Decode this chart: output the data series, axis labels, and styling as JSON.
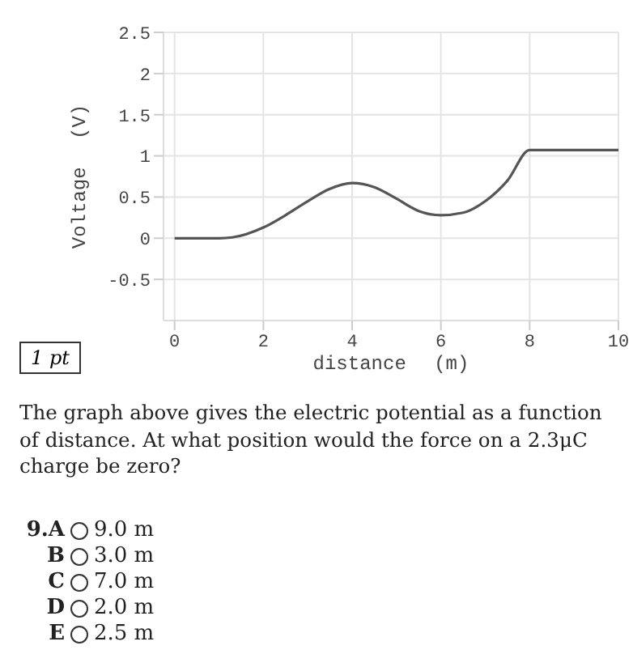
{
  "chart_data": {
    "type": "line",
    "xlabel": "distance (m)",
    "ylabel": "Voltage (V)",
    "x": [
      0,
      1,
      1.3,
      2,
      2.5,
      3,
      3.5,
      4,
      4.5,
      5,
      5.5,
      6,
      6.5,
      7,
      7.5,
      8,
      10
    ],
    "series": [
      {
        "color": "#555555",
        "values": [
          0,
          0,
          0.01,
          0.13,
          0.28,
          0.45,
          0.6,
          0.67,
          0.62,
          0.48,
          0.33,
          0.28,
          0.31,
          0.45,
          0.7,
          1.07,
          1.07
        ]
      }
    ],
    "xlim": [
      -0.25,
      10
    ],
    "xticks": [
      0,
      2,
      4,
      6,
      8,
      10
    ],
    "ylim": [
      -1,
      2.5
    ],
    "yticks": [
      -0.5,
      0,
      0.5,
      1,
      1.5,
      2,
      2.5
    ],
    "grid": true,
    "marker": "none",
    "line_style": "solid",
    "annotations": [
      "1 pt",
      "The graph above gives the electric potential as a function of distance. At what position would the force on a 2.3μC charge be zero?",
      "9.A",
      "9.0 m",
      "B",
      "3.0 m",
      "C",
      "7.0 m",
      "D",
      "2.0 m",
      "E",
      "2.5 m"
    ]
  }
}
